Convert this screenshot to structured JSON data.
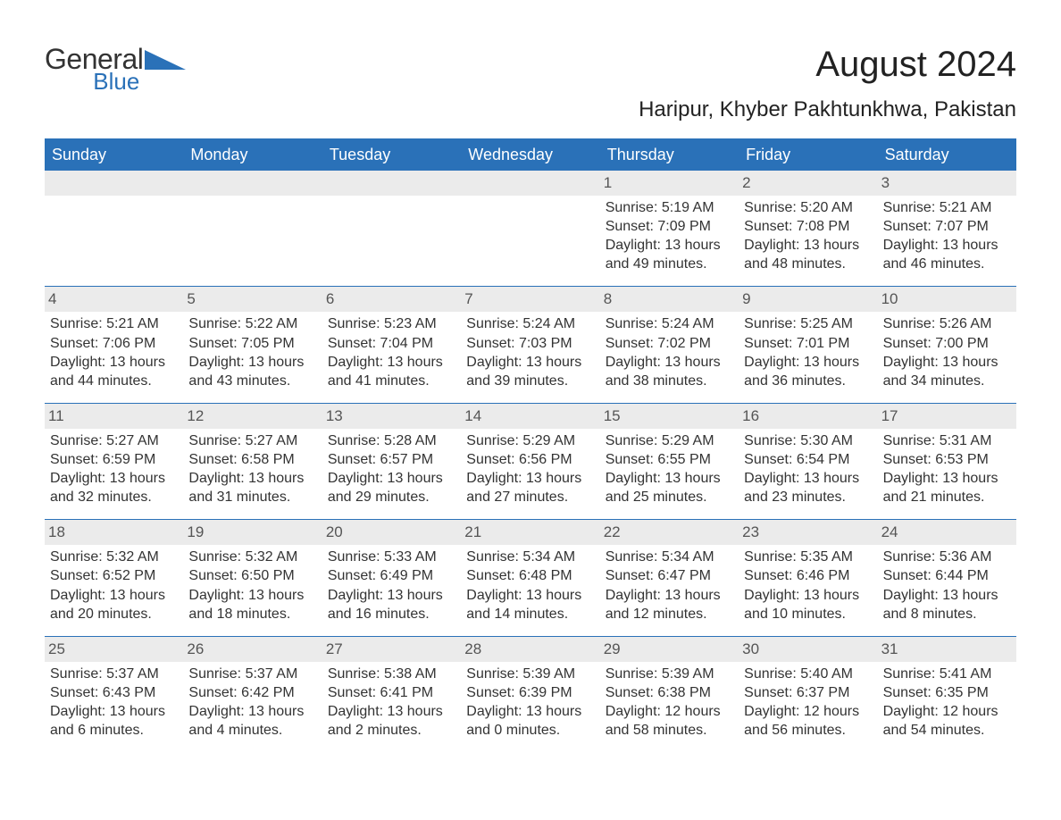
{
  "brand": {
    "text1": "General",
    "text2": "Blue"
  },
  "header": {
    "title": "August 2024",
    "location": "Haripur, Khyber Pakhtunkhwa, Pakistan"
  },
  "colors": {
    "header_blue": "#2a71b8",
    "daynum_bg": "#ebebeb",
    "text": "#333333",
    "white": "#ffffff"
  },
  "dayNames": [
    "Sunday",
    "Monday",
    "Tuesday",
    "Wednesday",
    "Thursday",
    "Friday",
    "Saturday"
  ],
  "weeks": [
    [
      {
        "empty": true
      },
      {
        "empty": true
      },
      {
        "empty": true
      },
      {
        "empty": true
      },
      {
        "n": "1",
        "sunrise": "5:19 AM",
        "sunset": "7:09 PM",
        "dh": "13",
        "dm": "49"
      },
      {
        "n": "2",
        "sunrise": "5:20 AM",
        "sunset": "7:08 PM",
        "dh": "13",
        "dm": "48"
      },
      {
        "n": "3",
        "sunrise": "5:21 AM",
        "sunset": "7:07 PM",
        "dh": "13",
        "dm": "46"
      }
    ],
    [
      {
        "n": "4",
        "sunrise": "5:21 AM",
        "sunset": "7:06 PM",
        "dh": "13",
        "dm": "44"
      },
      {
        "n": "5",
        "sunrise": "5:22 AM",
        "sunset": "7:05 PM",
        "dh": "13",
        "dm": "43"
      },
      {
        "n": "6",
        "sunrise": "5:23 AM",
        "sunset": "7:04 PM",
        "dh": "13",
        "dm": "41"
      },
      {
        "n": "7",
        "sunrise": "5:24 AM",
        "sunset": "7:03 PM",
        "dh": "13",
        "dm": "39"
      },
      {
        "n": "8",
        "sunrise": "5:24 AM",
        "sunset": "7:02 PM",
        "dh": "13",
        "dm": "38"
      },
      {
        "n": "9",
        "sunrise": "5:25 AM",
        "sunset": "7:01 PM",
        "dh": "13",
        "dm": "36"
      },
      {
        "n": "10",
        "sunrise": "5:26 AM",
        "sunset": "7:00 PM",
        "dh": "13",
        "dm": "34"
      }
    ],
    [
      {
        "n": "11",
        "sunrise": "5:27 AM",
        "sunset": "6:59 PM",
        "dh": "13",
        "dm": "32"
      },
      {
        "n": "12",
        "sunrise": "5:27 AM",
        "sunset": "6:58 PM",
        "dh": "13",
        "dm": "31"
      },
      {
        "n": "13",
        "sunrise": "5:28 AM",
        "sunset": "6:57 PM",
        "dh": "13",
        "dm": "29"
      },
      {
        "n": "14",
        "sunrise": "5:29 AM",
        "sunset": "6:56 PM",
        "dh": "13",
        "dm": "27"
      },
      {
        "n": "15",
        "sunrise": "5:29 AM",
        "sunset": "6:55 PM",
        "dh": "13",
        "dm": "25"
      },
      {
        "n": "16",
        "sunrise": "5:30 AM",
        "sunset": "6:54 PM",
        "dh": "13",
        "dm": "23"
      },
      {
        "n": "17",
        "sunrise": "5:31 AM",
        "sunset": "6:53 PM",
        "dh": "13",
        "dm": "21"
      }
    ],
    [
      {
        "n": "18",
        "sunrise": "5:32 AM",
        "sunset": "6:52 PM",
        "dh": "13",
        "dm": "20"
      },
      {
        "n": "19",
        "sunrise": "5:32 AM",
        "sunset": "6:50 PM",
        "dh": "13",
        "dm": "18"
      },
      {
        "n": "20",
        "sunrise": "5:33 AM",
        "sunset": "6:49 PM",
        "dh": "13",
        "dm": "16"
      },
      {
        "n": "21",
        "sunrise": "5:34 AM",
        "sunset": "6:48 PM",
        "dh": "13",
        "dm": "14"
      },
      {
        "n": "22",
        "sunrise": "5:34 AM",
        "sunset": "6:47 PM",
        "dh": "13",
        "dm": "12"
      },
      {
        "n": "23",
        "sunrise": "5:35 AM",
        "sunset": "6:46 PM",
        "dh": "13",
        "dm": "10"
      },
      {
        "n": "24",
        "sunrise": "5:36 AM",
        "sunset": "6:44 PM",
        "dh": "13",
        "dm": "8"
      }
    ],
    [
      {
        "n": "25",
        "sunrise": "5:37 AM",
        "sunset": "6:43 PM",
        "dh": "13",
        "dm": "6"
      },
      {
        "n": "26",
        "sunrise": "5:37 AM",
        "sunset": "6:42 PM",
        "dh": "13",
        "dm": "4"
      },
      {
        "n": "27",
        "sunrise": "5:38 AM",
        "sunset": "6:41 PM",
        "dh": "13",
        "dm": "2"
      },
      {
        "n": "28",
        "sunrise": "5:39 AM",
        "sunset": "6:39 PM",
        "dh": "13",
        "dm": "0"
      },
      {
        "n": "29",
        "sunrise": "5:39 AM",
        "sunset": "6:38 PM",
        "dh": "12",
        "dm": "58"
      },
      {
        "n": "30",
        "sunrise": "5:40 AM",
        "sunset": "6:37 PM",
        "dh": "12",
        "dm": "56"
      },
      {
        "n": "31",
        "sunrise": "5:41 AM",
        "sunset": "6:35 PM",
        "dh": "12",
        "dm": "54"
      }
    ]
  ],
  "labels": {
    "sunrise": "Sunrise: ",
    "sunset": "Sunset: ",
    "daylight1": "Daylight: ",
    "daylight2": " hours and ",
    "daylight3": " minutes."
  }
}
